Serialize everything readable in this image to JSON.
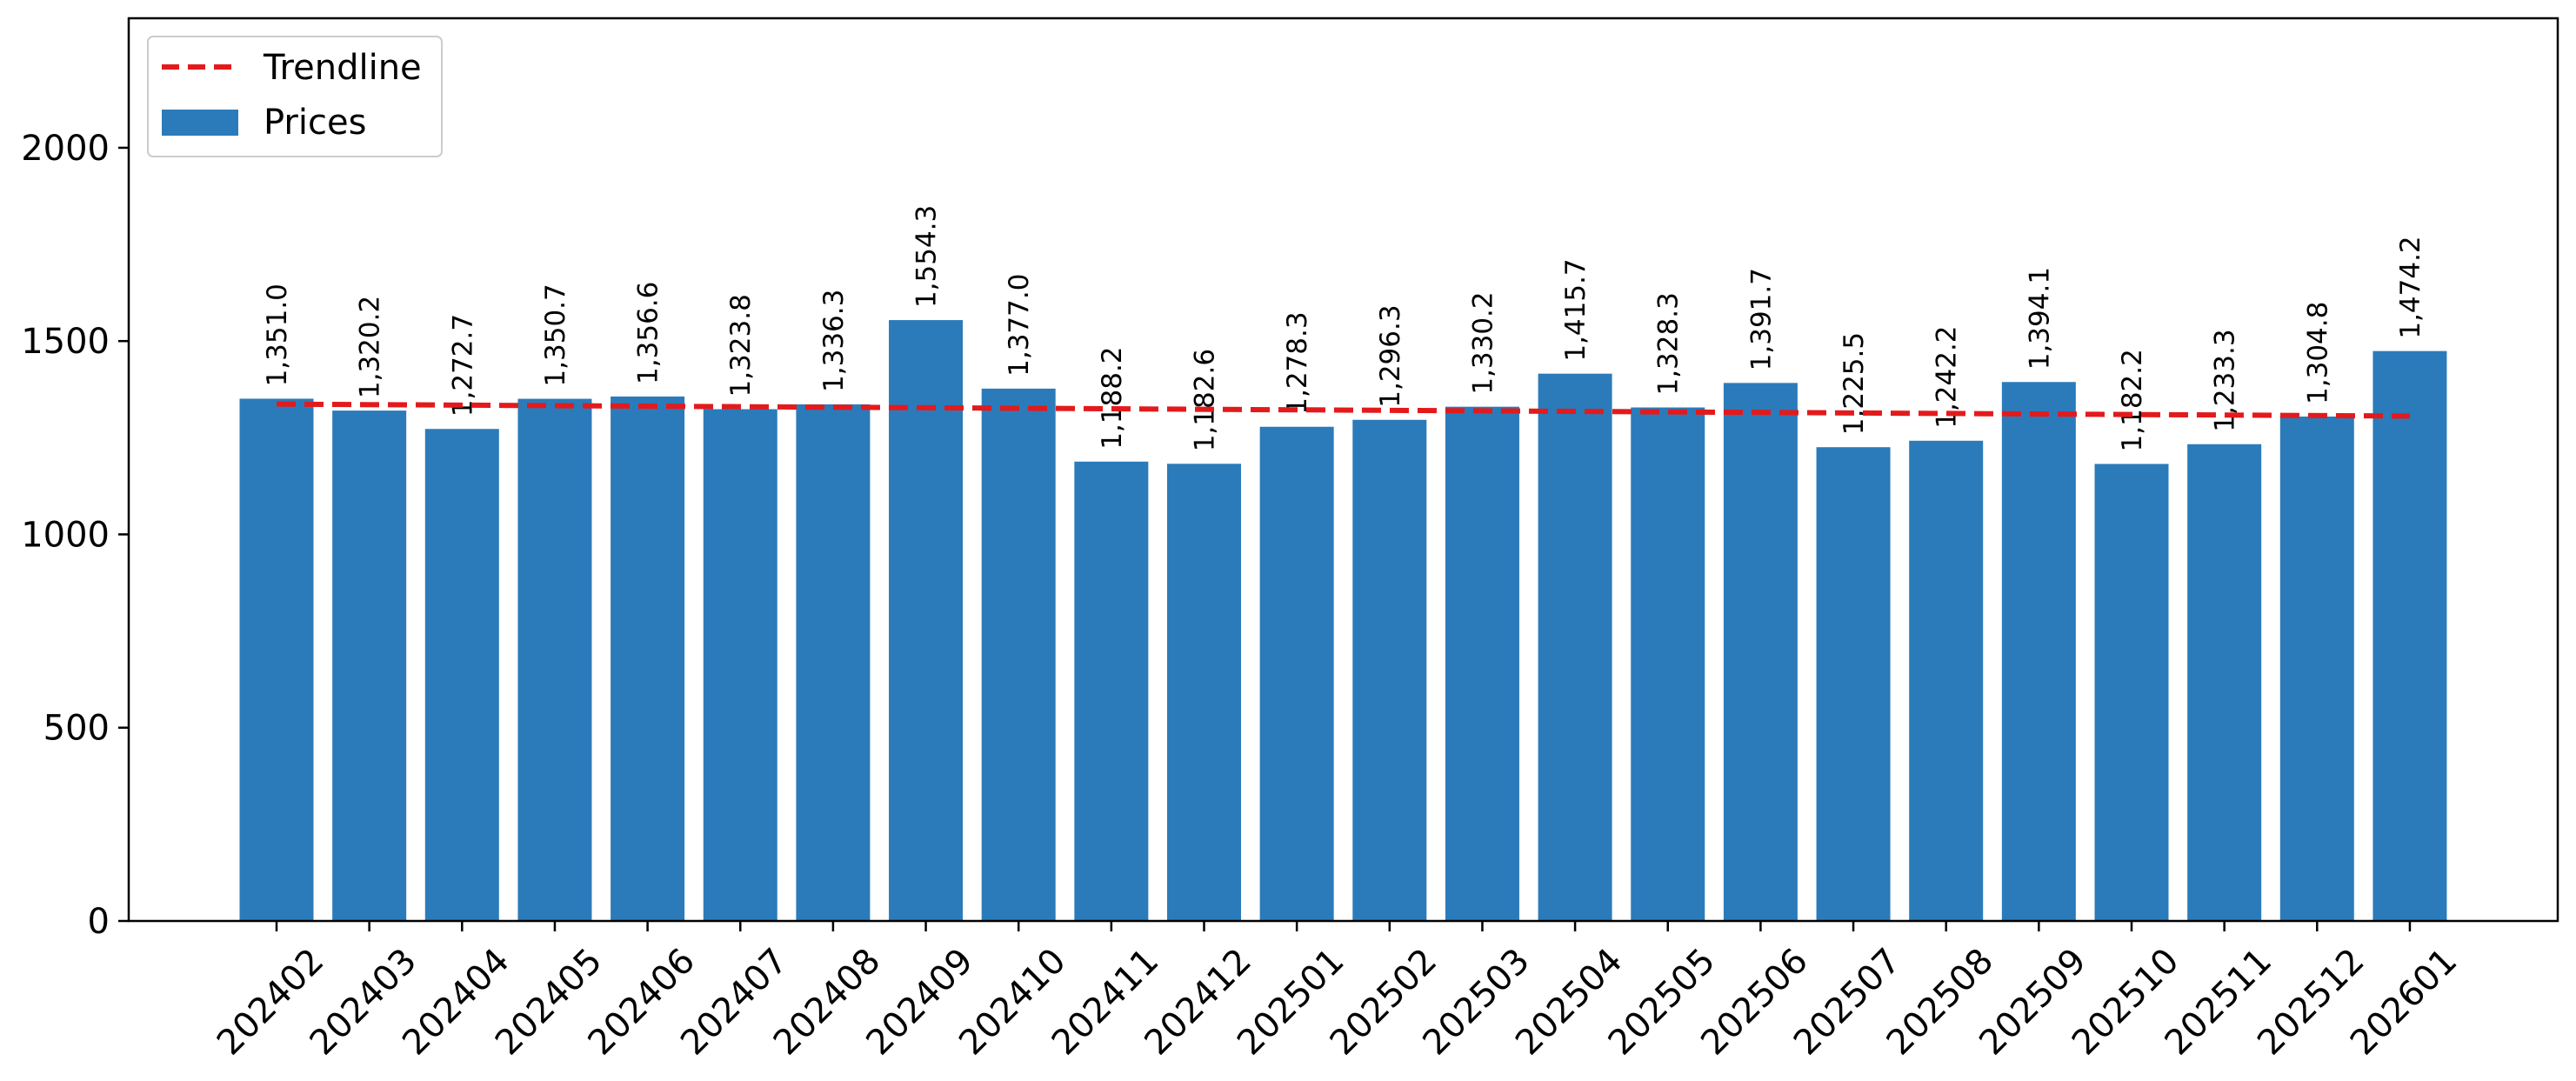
{
  "chart_data": {
    "type": "bar",
    "title": "",
    "xlabel": "",
    "ylabel": "",
    "categories": [
      "202402",
      "202403",
      "202404",
      "202405",
      "202406",
      "202407",
      "202408",
      "202409",
      "202410",
      "202411",
      "202412",
      "202501",
      "202502",
      "202503",
      "202504",
      "202505",
      "202506",
      "202507",
      "202508",
      "202509",
      "202510",
      "202511",
      "202512",
      "202601"
    ],
    "series": [
      {
        "name": "Prices",
        "values": [
          1351.0,
          1320.2,
          1272.7,
          1350.7,
          1356.6,
          1323.8,
          1336.3,
          1554.3,
          1377.0,
          1188.2,
          1182.6,
          1278.3,
          1296.3,
          1330.2,
          1415.7,
          1328.3,
          1391.7,
          1225.5,
          1242.2,
          1394.1,
          1182.2,
          1233.3,
          1304.8,
          1474.2
        ],
        "labels": [
          "1,351.0",
          "1,320.2",
          "1,272.7",
          "1,350.7",
          "1,356.6",
          "1,323.8",
          "1,336.3",
          "1,554.3",
          "1,377.0",
          "1,188.2",
          "1,182.6",
          "1,278.3",
          "1,296.3",
          "1,330.2",
          "1,415.7",
          "1,328.3",
          "1,391.7",
          "1,225.5",
          "1,242.2",
          "1,394.1",
          "1,182.2",
          "1,233.3",
          "1,304.8",
          "1,474.2"
        ],
        "color": "#2b7bba"
      }
    ],
    "trendline": {
      "name": "Trendline",
      "start": 1337,
      "end": 1306,
      "color": "#e31a1c",
      "style": "dashed"
    },
    "ylim": [
      0,
      2335
    ],
    "yticks": [
      0,
      500,
      1000,
      1500,
      2000
    ],
    "grid": false,
    "legend_position": "top-left"
  }
}
